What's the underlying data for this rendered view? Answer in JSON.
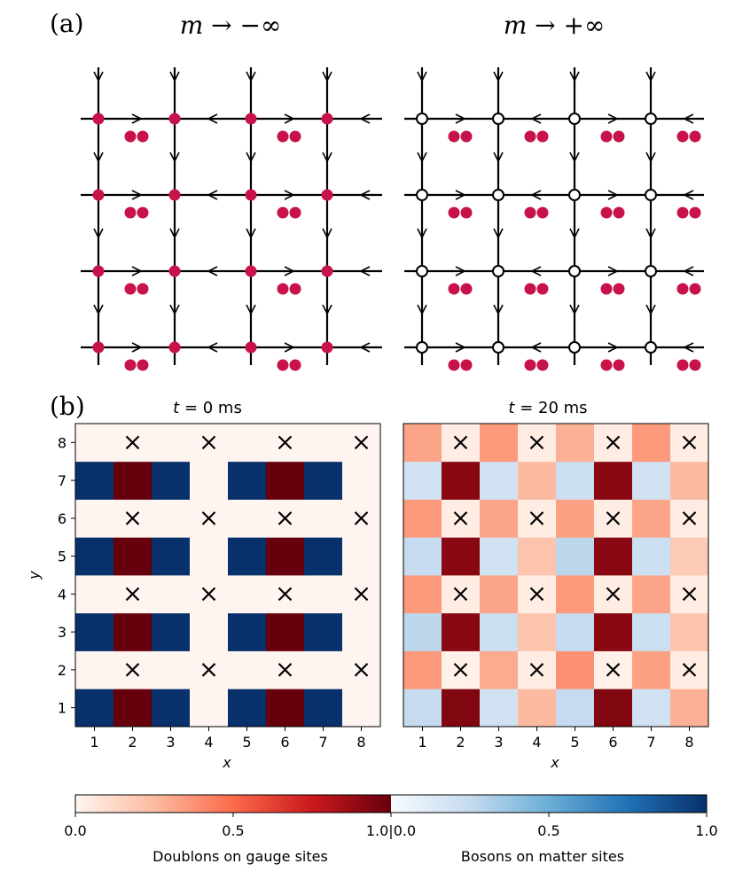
{
  "panel_a": {
    "label": "(a)",
    "left_title": "m → −∞",
    "right_title": "m → +∞"
  },
  "panel_b": {
    "label": "(b)"
  },
  "colors": {
    "doublon_dot": "#c8124a",
    "lattice_line": "#000000",
    "reds_max": "#67000d",
    "reds_min": "#fff5f0",
    "blues_max": "#08306b",
    "blues_min": "#f7fbff"
  },
  "chart_data": [
    {
      "type": "heatmap",
      "title": "t = 0 ms",
      "title_parts": {
        "var": "t",
        "eq": " = ",
        "val": "0 ms"
      },
      "xlabel": "x",
      "ylabel": "y",
      "x": [
        1,
        2,
        3,
        4,
        5,
        6,
        7,
        8
      ],
      "y": [
        1,
        2,
        3,
        4,
        5,
        6,
        7,
        8
      ],
      "rows_by_y": {
        "1": [
          [
            "b",
            1.0
          ],
          [
            "r",
            1.0
          ],
          [
            "b",
            1.0
          ],
          [
            "r",
            0.0
          ],
          [
            "b",
            1.0
          ],
          [
            "r",
            1.0
          ],
          [
            "b",
            1.0
          ],
          [
            "r",
            0.0
          ]
        ],
        "2": [
          [
            "r",
            0.0
          ],
          [
            "x",
            0.0
          ],
          [
            "r",
            0.0
          ],
          [
            "x",
            0.0
          ],
          [
            "r",
            0.0
          ],
          [
            "x",
            0.0
          ],
          [
            "r",
            0.0
          ],
          [
            "x",
            0.0
          ]
        ],
        "3": [
          [
            "b",
            1.0
          ],
          [
            "r",
            1.0
          ],
          [
            "b",
            1.0
          ],
          [
            "r",
            0.0
          ],
          [
            "b",
            1.0
          ],
          [
            "r",
            1.0
          ],
          [
            "b",
            1.0
          ],
          [
            "r",
            0.0
          ]
        ],
        "4": [
          [
            "r",
            0.0
          ],
          [
            "x",
            0.0
          ],
          [
            "r",
            0.0
          ],
          [
            "x",
            0.0
          ],
          [
            "r",
            0.0
          ],
          [
            "x",
            0.0
          ],
          [
            "r",
            0.0
          ],
          [
            "x",
            0.0
          ]
        ],
        "5": [
          [
            "b",
            1.0
          ],
          [
            "r",
            1.0
          ],
          [
            "b",
            1.0
          ],
          [
            "r",
            0.0
          ],
          [
            "b",
            1.0
          ],
          [
            "r",
            1.0
          ],
          [
            "b",
            1.0
          ],
          [
            "r",
            0.0
          ]
        ],
        "6": [
          [
            "r",
            0.0
          ],
          [
            "x",
            0.0
          ],
          [
            "r",
            0.0
          ],
          [
            "x",
            0.0
          ],
          [
            "r",
            0.0
          ],
          [
            "x",
            0.0
          ],
          [
            "r",
            0.0
          ],
          [
            "x",
            0.0
          ]
        ],
        "7": [
          [
            "b",
            1.0
          ],
          [
            "r",
            1.0
          ],
          [
            "b",
            1.0
          ],
          [
            "r",
            0.0
          ],
          [
            "b",
            1.0
          ],
          [
            "r",
            1.0
          ],
          [
            "b",
            1.0
          ],
          [
            "r",
            0.0
          ]
        ],
        "8": [
          [
            "r",
            0.0
          ],
          [
            "x",
            0.0
          ],
          [
            "r",
            0.0
          ],
          [
            "x",
            0.0
          ],
          [
            "r",
            0.0
          ],
          [
            "x",
            0.0
          ],
          [
            "r",
            0.0
          ],
          [
            "x",
            0.0
          ]
        ]
      }
    },
    {
      "type": "heatmap",
      "title": "t = 20 ms",
      "title_parts": {
        "var": "t",
        "eq": " = ",
        "val": "20 ms"
      },
      "xlabel": "x",
      "ylabel": "",
      "x": [
        1,
        2,
        3,
        4,
        5,
        6,
        7,
        8
      ],
      "y": [
        1,
        2,
        3,
        4,
        5,
        6,
        7,
        8
      ],
      "rows_by_y": {
        "1": [
          [
            "b",
            0.25
          ],
          [
            "r",
            0.95
          ],
          [
            "b",
            0.2
          ],
          [
            "r",
            0.25
          ],
          [
            "b",
            0.25
          ],
          [
            "r",
            0.95
          ],
          [
            "b",
            0.2
          ],
          [
            "r",
            0.28
          ]
        ],
        "2": [
          [
            "r",
            0.35
          ],
          [
            "x",
            0.03
          ],
          [
            "r",
            0.3
          ],
          [
            "x",
            0.05
          ],
          [
            "r",
            0.38
          ],
          [
            "x",
            0.03
          ],
          [
            "r",
            0.33
          ],
          [
            "x",
            0.05
          ]
        ],
        "3": [
          [
            "b",
            0.28
          ],
          [
            "r",
            0.93
          ],
          [
            "b",
            0.22
          ],
          [
            "r",
            0.22
          ],
          [
            "b",
            0.25
          ],
          [
            "r",
            0.93
          ],
          [
            "b",
            0.22
          ],
          [
            "r",
            0.22
          ]
        ],
        "4": [
          [
            "r",
            0.35
          ],
          [
            "x",
            0.05
          ],
          [
            "r",
            0.32
          ],
          [
            "x",
            0.05
          ],
          [
            "r",
            0.35
          ],
          [
            "x",
            0.05
          ],
          [
            "r",
            0.32
          ],
          [
            "x",
            0.05
          ]
        ],
        "5": [
          [
            "b",
            0.25
          ],
          [
            "r",
            0.93
          ],
          [
            "b",
            0.2
          ],
          [
            "r",
            0.22
          ],
          [
            "b",
            0.28
          ],
          [
            "r",
            0.93
          ],
          [
            "b",
            0.22
          ],
          [
            "r",
            0.2
          ]
        ],
        "6": [
          [
            "r",
            0.35
          ],
          [
            "x",
            0.05
          ],
          [
            "r",
            0.32
          ],
          [
            "x",
            0.05
          ],
          [
            "r",
            0.33
          ],
          [
            "x",
            0.05
          ],
          [
            "r",
            0.32
          ],
          [
            "x",
            0.05
          ]
        ],
        "7": [
          [
            "b",
            0.2
          ],
          [
            "r",
            0.93
          ],
          [
            "b",
            0.2
          ],
          [
            "r",
            0.25
          ],
          [
            "b",
            0.22
          ],
          [
            "r",
            0.93
          ],
          [
            "b",
            0.2
          ],
          [
            "r",
            0.25
          ]
        ],
        "8": [
          [
            "r",
            0.32
          ],
          [
            "x",
            0.05
          ],
          [
            "r",
            0.35
          ],
          [
            "x",
            0.05
          ],
          [
            "r",
            0.28
          ],
          [
            "x",
            0.05
          ],
          [
            "r",
            0.35
          ],
          [
            "x",
            0.05
          ]
        ]
      }
    }
  ],
  "colorbar": {
    "left": {
      "label": "Doublons on gauge sites",
      "ticks": [
        "0.0",
        "0.5",
        "1.0"
      ]
    },
    "right": {
      "label": "Bosons on matter sites",
      "ticks": [
        "0.0",
        "0.5",
        "1.0"
      ]
    },
    "joined_tick": "1.0|0.0"
  }
}
